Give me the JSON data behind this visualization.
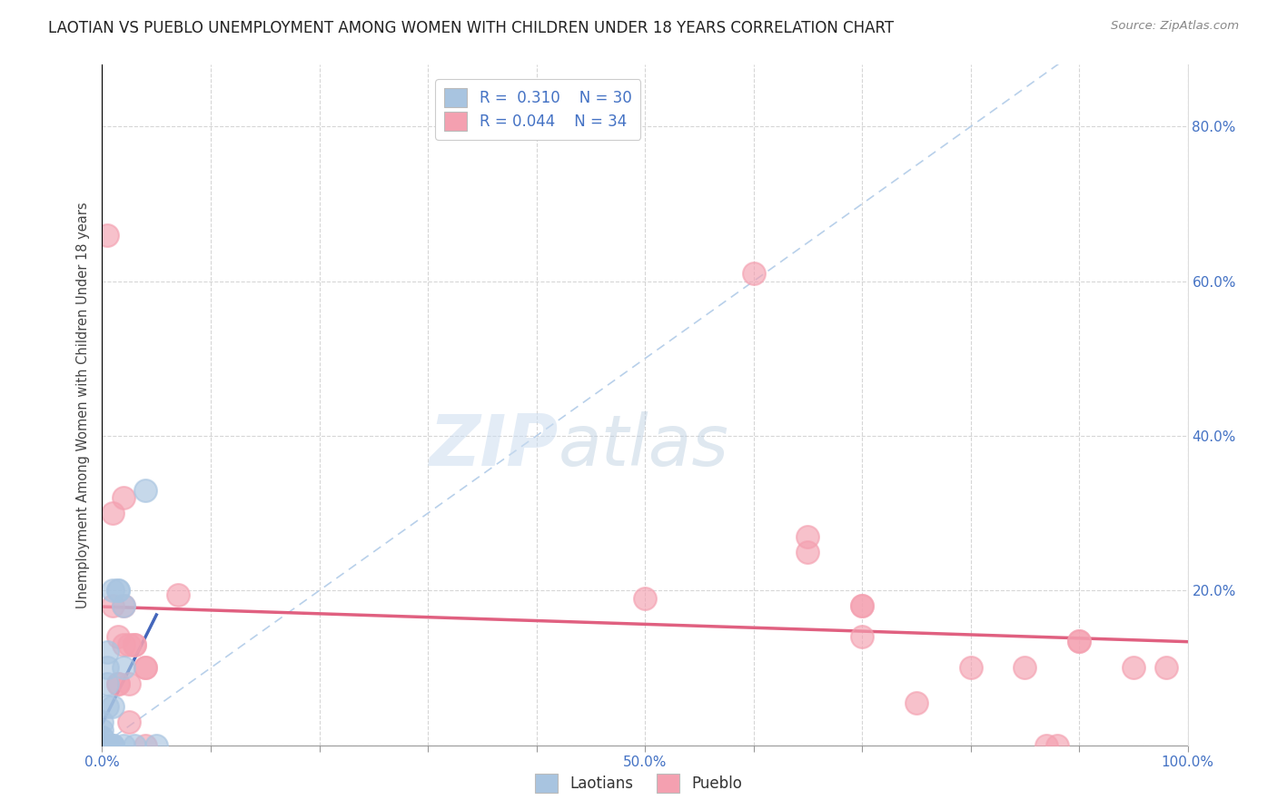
{
  "title": "LAOTIAN VS PUEBLO UNEMPLOYMENT AMONG WOMEN WITH CHILDREN UNDER 18 YEARS CORRELATION CHART",
  "source": "Source: ZipAtlas.com",
  "ylabel": "Unemployment Among Women with Children Under 18 years",
  "xlim": [
    0,
    1.0
  ],
  "ylim": [
    0,
    0.88
  ],
  "xticks": [
    0.0,
    0.1,
    0.2,
    0.3,
    0.4,
    0.5,
    0.6,
    0.7,
    0.8,
    0.9,
    1.0
  ],
  "yticks": [
    0.0,
    0.2,
    0.4,
    0.6,
    0.8
  ],
  "xtick_labels": [
    "0.0%",
    "",
    "",
    "",
    "",
    "50.0%",
    "",
    "",
    "",
    "",
    "100.0%"
  ],
  "ytick_labels_right": [
    "",
    "20.0%",
    "40.0%",
    "60.0%",
    "80.0%"
  ],
  "legend_laotian_R": "0.310",
  "legend_laotian_N": "30",
  "legend_pueblo_R": "0.044",
  "legend_pueblo_N": "34",
  "laotian_color": "#a8c4e0",
  "pueblo_color": "#f4a0b0",
  "laotian_trend_color": "#4466bb",
  "pueblo_trend_color": "#e06080",
  "diagonal_color": "#b8d0ea",
  "background_color": "#ffffff",
  "laotian_points": [
    [
      0.0,
      0.0
    ],
    [
      0.0,
      0.0
    ],
    [
      0.0,
      0.0
    ],
    [
      0.0,
      0.0
    ],
    [
      0.0,
      0.0
    ],
    [
      0.0,
      0.01
    ],
    [
      0.0,
      0.01
    ],
    [
      0.0,
      0.02
    ],
    [
      0.0,
      0.03
    ],
    [
      0.005,
      0.0
    ],
    [
      0.005,
      0.0
    ],
    [
      0.005,
      0.0
    ],
    [
      0.005,
      0.0
    ],
    [
      0.005,
      0.05
    ],
    [
      0.005,
      0.08
    ],
    [
      0.005,
      0.1
    ],
    [
      0.005,
      0.12
    ],
    [
      0.01,
      0.0
    ],
    [
      0.01,
      0.0
    ],
    [
      0.01,
      0.0
    ],
    [
      0.01,
      0.05
    ],
    [
      0.01,
      0.2
    ],
    [
      0.015,
      0.2
    ],
    [
      0.015,
      0.2
    ],
    [
      0.02,
      0.18
    ],
    [
      0.02,
      0.1
    ],
    [
      0.02,
      0.0
    ],
    [
      0.03,
      0.0
    ],
    [
      0.04,
      0.33
    ],
    [
      0.05,
      0.0
    ]
  ],
  "pueblo_points": [
    [
      0.005,
      0.66
    ],
    [
      0.01,
      0.3
    ],
    [
      0.01,
      0.18
    ],
    [
      0.015,
      0.14
    ],
    [
      0.015,
      0.08
    ],
    [
      0.015,
      0.08
    ],
    [
      0.02,
      0.32
    ],
    [
      0.02,
      0.18
    ],
    [
      0.02,
      0.13
    ],
    [
      0.025,
      0.13
    ],
    [
      0.025,
      0.08
    ],
    [
      0.025,
      0.03
    ],
    [
      0.03,
      0.13
    ],
    [
      0.03,
      0.13
    ],
    [
      0.04,
      0.1
    ],
    [
      0.04,
      0.1
    ],
    [
      0.04,
      0.0
    ],
    [
      0.07,
      0.195
    ],
    [
      0.5,
      0.19
    ],
    [
      0.6,
      0.61
    ],
    [
      0.65,
      0.25
    ],
    [
      0.65,
      0.27
    ],
    [
      0.7,
      0.18
    ],
    [
      0.7,
      0.18
    ],
    [
      0.7,
      0.14
    ],
    [
      0.75,
      0.055
    ],
    [
      0.8,
      0.1
    ],
    [
      0.85,
      0.1
    ],
    [
      0.87,
      0.0
    ],
    [
      0.88,
      0.0
    ],
    [
      0.9,
      0.135
    ],
    [
      0.9,
      0.135
    ],
    [
      0.95,
      0.1
    ],
    [
      0.98,
      0.1
    ]
  ]
}
